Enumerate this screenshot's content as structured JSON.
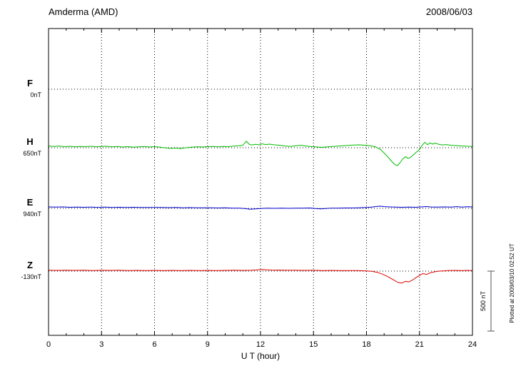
{
  "header": {
    "title": "Amderma (AMD)",
    "date": "2008/06/03"
  },
  "axis": {
    "x_label": "U T (hour)",
    "x_ticks": [
      0,
      3,
      6,
      9,
      12,
      15,
      18,
      21,
      24
    ],
    "x_minor_step": 1,
    "x_range": [
      0,
      24
    ]
  },
  "scale_bar": {
    "label": "500 nT",
    "nT": 500
  },
  "footer_note": "Plotted at 2009/03/10 02:52 UT",
  "chart_data": {
    "type": "line",
    "title": "Amderma (AMD) magnetogram",
    "date": "2008/06/03",
    "xlabel": "U T (hour)",
    "x_range": [
      0,
      24
    ],
    "grid": "dotted",
    "scale_bar_nT": 500,
    "series": [
      {
        "name": "F",
        "color": "#FFA500",
        "baseline_label": "0nT",
        "baseline_value_nT": 0,
        "visible": false,
        "points": [
          [
            0,
            0
          ],
          [
            24,
            0
          ]
        ]
      },
      {
        "name": "H",
        "color": "#00BB00",
        "baseline_label": "650nT",
        "baseline_value_nT": 650,
        "visible": true,
        "points": [
          [
            0,
            14
          ],
          [
            0.3,
            10
          ],
          [
            0.6,
            13
          ],
          [
            0.9,
            9
          ],
          [
            1.2,
            12
          ],
          [
            1.5,
            8
          ],
          [
            1.8,
            11
          ],
          [
            2.1,
            9
          ],
          [
            2.4,
            12
          ],
          [
            2.7,
            8
          ],
          [
            3,
            10
          ],
          [
            3.3,
            12
          ],
          [
            3.6,
            7
          ],
          [
            3.9,
            10
          ],
          [
            4.2,
            6
          ],
          [
            4.5,
            9
          ],
          [
            4.8,
            5
          ],
          [
            5.1,
            8
          ],
          [
            5.4,
            10
          ],
          [
            5.7,
            6
          ],
          [
            6,
            9
          ],
          [
            6.3,
            4
          ],
          [
            6.6,
            -2
          ],
          [
            6.9,
            -6
          ],
          [
            7.2,
            -3
          ],
          [
            7.5,
            -7
          ],
          [
            7.8,
            0
          ],
          [
            8.1,
            5
          ],
          [
            8.4,
            8
          ],
          [
            8.7,
            6
          ],
          [
            9,
            9
          ],
          [
            9.3,
            11
          ],
          [
            9.6,
            8
          ],
          [
            9.9,
            11
          ],
          [
            10.2,
            9
          ],
          [
            10.5,
            13
          ],
          [
            10.8,
            16
          ],
          [
            11,
            20
          ],
          [
            11.2,
            55
          ],
          [
            11.35,
            30
          ],
          [
            11.5,
            22
          ],
          [
            11.7,
            28
          ],
          [
            11.9,
            24
          ],
          [
            12.1,
            32
          ],
          [
            12.3,
            26
          ],
          [
            12.5,
            30
          ],
          [
            12.8,
            24
          ],
          [
            13.1,
            20
          ],
          [
            13.4,
            14
          ],
          [
            13.7,
            10
          ],
          [
            14,
            16
          ],
          [
            14.3,
            20
          ],
          [
            14.6,
            13
          ],
          [
            14.9,
            9
          ],
          [
            15.2,
            6
          ],
          [
            15.5,
            3
          ],
          [
            15.8,
            7
          ],
          [
            16.1,
            10
          ],
          [
            16.4,
            13
          ],
          [
            16.7,
            16
          ],
          [
            17,
            19
          ],
          [
            17.3,
            22
          ],
          [
            17.6,
            24
          ],
          [
            17.9,
            20
          ],
          [
            18.2,
            16
          ],
          [
            18.5,
            8
          ],
          [
            18.8,
            -15
          ],
          [
            19,
            -45
          ],
          [
            19.2,
            -75
          ],
          [
            19.4,
            -110
          ],
          [
            19.6,
            -140
          ],
          [
            19.75,
            -150
          ],
          [
            19.9,
            -125
          ],
          [
            20.05,
            -95
          ],
          [
            20.2,
            -75
          ],
          [
            20.35,
            -90
          ],
          [
            20.5,
            -80
          ],
          [
            20.65,
            -60
          ],
          [
            20.8,
            -40
          ],
          [
            21,
            -15
          ],
          [
            21.15,
            20
          ],
          [
            21.3,
            45
          ],
          [
            21.45,
            25
          ],
          [
            21.6,
            40
          ],
          [
            21.75,
            30
          ],
          [
            21.9,
            38
          ],
          [
            22.1,
            28
          ],
          [
            22.3,
            22
          ],
          [
            22.5,
            26
          ],
          [
            22.8,
            20
          ],
          [
            23.1,
            17
          ],
          [
            23.4,
            14
          ],
          [
            23.7,
            12
          ],
          [
            24,
            11
          ]
        ]
      },
      {
        "name": "E",
        "color": "#0000CC",
        "baseline_label": "940nT",
        "baseline_value_nT": 940,
        "visible": true,
        "points": [
          [
            0,
            12
          ],
          [
            0.4,
            10
          ],
          [
            0.8,
            12
          ],
          [
            1.2,
            9
          ],
          [
            1.6,
            11
          ],
          [
            2,
            9
          ],
          [
            2.4,
            11
          ],
          [
            2.8,
            8
          ],
          [
            3.2,
            10
          ],
          [
            3.6,
            8
          ],
          [
            4,
            9
          ],
          [
            4.4,
            7
          ],
          [
            4.8,
            9
          ],
          [
            5.2,
            7
          ],
          [
            5.6,
            8
          ],
          [
            6,
            7
          ],
          [
            6.4,
            8
          ],
          [
            6.8,
            6
          ],
          [
            7.2,
            7
          ],
          [
            7.6,
            5
          ],
          [
            8,
            6
          ],
          [
            8.4,
            4
          ],
          [
            8.8,
            5
          ],
          [
            9.2,
            4
          ],
          [
            9.6,
            3
          ],
          [
            10,
            4
          ],
          [
            10.4,
            2
          ],
          [
            10.8,
            1
          ],
          [
            11.1,
            -2
          ],
          [
            11.4,
            -8
          ],
          [
            11.7,
            -4
          ],
          [
            12,
            -1
          ],
          [
            12.4,
            1
          ],
          [
            12.8,
            0
          ],
          [
            13.2,
            2
          ],
          [
            13.6,
            0
          ],
          [
            14,
            2
          ],
          [
            14.4,
            1
          ],
          [
            14.8,
            3
          ],
          [
            15.1,
            -2
          ],
          [
            15.4,
            -5
          ],
          [
            15.7,
            -1
          ],
          [
            16,
            1
          ],
          [
            16.4,
            2
          ],
          [
            16.8,
            3
          ],
          [
            17.2,
            3
          ],
          [
            17.6,
            5
          ],
          [
            18,
            8
          ],
          [
            18.3,
            10
          ],
          [
            18.6,
            16
          ],
          [
            18.8,
            18
          ],
          [
            19,
            14
          ],
          [
            19.3,
            12
          ],
          [
            19.6,
            10
          ],
          [
            20,
            9
          ],
          [
            20.4,
            11
          ],
          [
            20.8,
            9
          ],
          [
            21.1,
            12
          ],
          [
            21.4,
            15
          ],
          [
            21.7,
            11
          ],
          [
            22,
            10
          ],
          [
            22.4,
            12
          ],
          [
            22.8,
            10
          ],
          [
            23.1,
            14
          ],
          [
            23.4,
            11
          ],
          [
            23.7,
            13
          ],
          [
            24,
            12
          ]
        ]
      },
      {
        "name": "Z",
        "color": "#DD0000",
        "baseline_label": "-130nT",
        "baseline_value_nT": -130,
        "visible": true,
        "points": [
          [
            0,
            8
          ],
          [
            0.5,
            6
          ],
          [
            1,
            8
          ],
          [
            1.5,
            6
          ],
          [
            2,
            7
          ],
          [
            2.5,
            5
          ],
          [
            3,
            7
          ],
          [
            3.5,
            6
          ],
          [
            4,
            7
          ],
          [
            4.5,
            5
          ],
          [
            5,
            6
          ],
          [
            5.5,
            5
          ],
          [
            6,
            6
          ],
          [
            6.5,
            4
          ],
          [
            7,
            6
          ],
          [
            7.5,
            5
          ],
          [
            8,
            6
          ],
          [
            8.5,
            5
          ],
          [
            9,
            6
          ],
          [
            9.5,
            5
          ],
          [
            10,
            6
          ],
          [
            10.5,
            7
          ],
          [
            11,
            6
          ],
          [
            11.5,
            8
          ],
          [
            11.8,
            11
          ],
          [
            12.1,
            13
          ],
          [
            12.4,
            10
          ],
          [
            12.7,
            8
          ],
          [
            13,
            9
          ],
          [
            13.5,
            7
          ],
          [
            14,
            8
          ],
          [
            14.5,
            6
          ],
          [
            15,
            7
          ],
          [
            15.5,
            5
          ],
          [
            16,
            6
          ],
          [
            16.5,
            5
          ],
          [
            17,
            5
          ],
          [
            17.5,
            4
          ],
          [
            18,
            2
          ],
          [
            18.3,
            -2
          ],
          [
            18.6,
            -10
          ],
          [
            18.9,
            -25
          ],
          [
            19.2,
            -45
          ],
          [
            19.5,
            -70
          ],
          [
            19.8,
            -95
          ],
          [
            20,
            -100
          ],
          [
            20.2,
            -85
          ],
          [
            20.4,
            -90
          ],
          [
            20.6,
            -75
          ],
          [
            20.8,
            -55
          ],
          [
            21,
            -35
          ],
          [
            21.2,
            -20
          ],
          [
            21.4,
            -28
          ],
          [
            21.6,
            -15
          ],
          [
            21.8,
            -8
          ],
          [
            22,
            -2
          ],
          [
            22.3,
            2
          ],
          [
            22.6,
            4
          ],
          [
            23,
            6
          ],
          [
            23.4,
            4
          ],
          [
            23.7,
            6
          ],
          [
            24,
            5
          ]
        ]
      }
    ]
  }
}
